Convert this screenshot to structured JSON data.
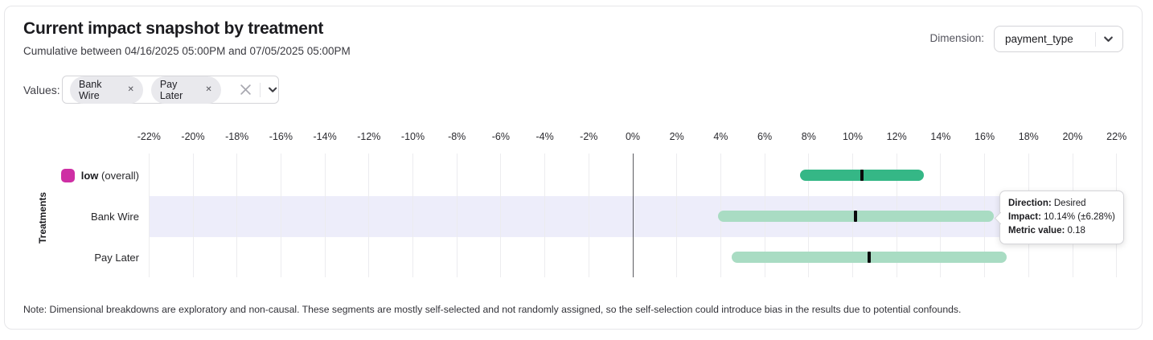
{
  "header": {
    "title": "Current impact snapshot by treatment",
    "subtitle": "Cumulative between 04/16/2025 05:00PM and 07/05/2025 05:00PM",
    "dimension_label": "Dimension:",
    "dimension_value": "payment_type"
  },
  "filters": {
    "values_label": "Values:",
    "chips": [
      {
        "label": "Bank Wire"
      },
      {
        "label": "Pay Later"
      }
    ]
  },
  "chart_data": {
    "type": "interval_bar",
    "title": "Current impact snapshot by treatment",
    "ylabel": "Treatments",
    "x_axis": {
      "unit": "%",
      "min": -23,
      "max": 23,
      "tick_step": 2,
      "ticks": [
        {
          "v": -22,
          "label": "-22%"
        },
        {
          "v": -20,
          "label": "-20%"
        },
        {
          "v": -18,
          "label": "-18%"
        },
        {
          "v": -16,
          "label": "-16%"
        },
        {
          "v": -14,
          "label": "-14%"
        },
        {
          "v": -12,
          "label": "-12%"
        },
        {
          "v": -10,
          "label": "-10%"
        },
        {
          "v": -8,
          "label": "-8%"
        },
        {
          "v": -6,
          "label": "-6%"
        },
        {
          "v": -4,
          "label": "-4%"
        },
        {
          "v": -2,
          "label": "-2%"
        },
        {
          "v": 0,
          "label": "0%"
        },
        {
          "v": 2,
          "label": "2%"
        },
        {
          "v": 4,
          "label": "4%"
        },
        {
          "v": 6,
          "label": "6%"
        },
        {
          "v": 8,
          "label": "8%"
        },
        {
          "v": 10,
          "label": "10%"
        },
        {
          "v": 12,
          "label": "12%"
        },
        {
          "v": 14,
          "label": "14%"
        },
        {
          "v": 16,
          "label": "16%"
        },
        {
          "v": 18,
          "label": "18%"
        },
        {
          "v": 20,
          "label": "20%"
        },
        {
          "v": 22,
          "label": "22%"
        }
      ]
    },
    "rows": [
      {
        "label": "low",
        "label_suffix": " (overall)",
        "swatch_color": "#ce2fa4",
        "impact_pct": 10.43,
        "ci_pct": 2.81,
        "low_pct": 7.62,
        "high_pct": 13.24,
        "bar_color": "#35b786",
        "highlighted": false
      },
      {
        "label": "Bank Wire",
        "label_suffix": "",
        "swatch_color": null,
        "impact_pct": 10.14,
        "ci_pct": 6.28,
        "low_pct": 3.86,
        "high_pct": 16.42,
        "bar_color": "#a9dcc3",
        "highlighted": true
      },
      {
        "label": "Pay Later",
        "label_suffix": "",
        "swatch_color": null,
        "impact_pct": 10.75,
        "ci_pct": 6.27,
        "low_pct": 4.48,
        "high_pct": 17.02,
        "bar_color": "#a9dcc3",
        "highlighted": false
      }
    ],
    "colors": {
      "overall_bar": "#35b786",
      "segment_bar": "#a9dcc3",
      "legend_swatch": "#ce2fa4",
      "highlight_band": "#ededfa",
      "interval_marker": "#0b0b0c",
      "zero_line": "#5b5b61"
    },
    "tooltip": {
      "row_label": "Bank Wire",
      "direction_label": "Direction:",
      "direction_value": "Desired",
      "impact_label": "Impact:",
      "impact_value": "10.14% (±6.28%)",
      "metric_label": "Metric value:",
      "metric_value": "0.18"
    }
  },
  "note": "Note: Dimensional breakdowns are exploratory and non-causal. These segments are mostly self-selected and not randomly assigned, so the self-selection could introduce bias in the results due to potential confounds."
}
